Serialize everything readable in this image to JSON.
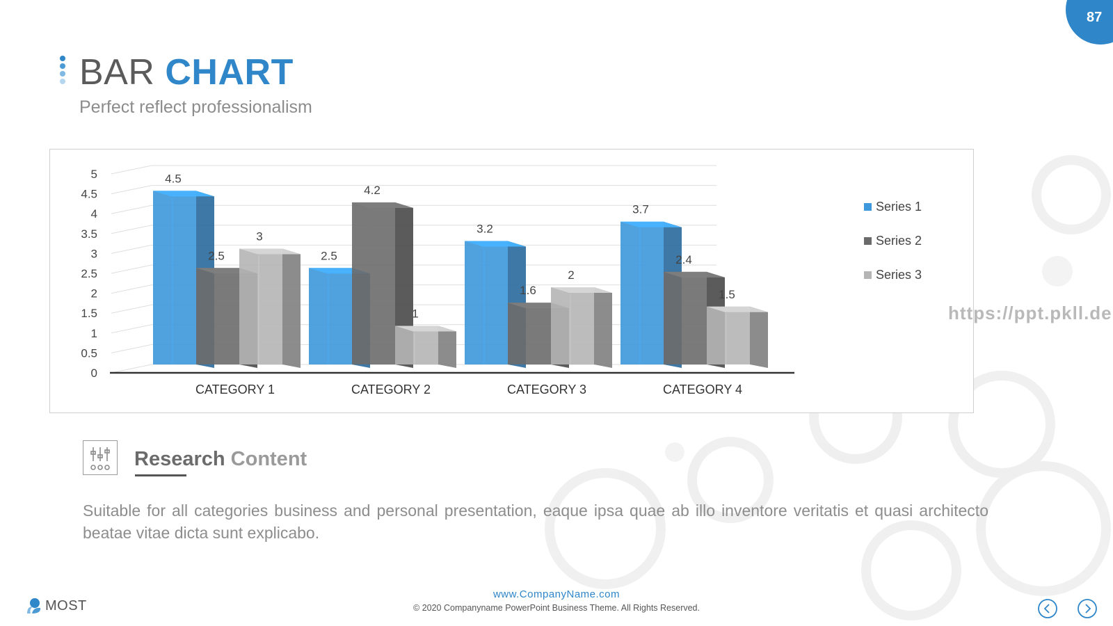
{
  "page_number": "87",
  "header": {
    "title_part1": "BAR",
    "title_part2": "CHART",
    "subtitle": "Perfect reflect professionalism"
  },
  "colors": {
    "accent": "#2f86c9",
    "series1": "#3d98dc",
    "series2": "#6b6b6b",
    "series3": "#b5b5b5"
  },
  "chart_data": {
    "type": "bar",
    "categories": [
      "CATEGORY 1",
      "CATEGORY 2",
      "CATEGORY 3",
      "CATEGORY 4"
    ],
    "series": [
      {
        "name": "Series 1",
        "values": [
          4.5,
          2.5,
          3.2,
          3.7
        ]
      },
      {
        "name": "Series 2",
        "values": [
          2.5,
          4.2,
          1.6,
          2.4
        ]
      },
      {
        "name": "Series 3",
        "values": [
          3,
          1,
          2,
          1.5
        ]
      }
    ],
    "y_ticks": [
      "0",
      "0.5",
      "1",
      "1.5",
      "2",
      "2.5",
      "3",
      "3.5",
      "4",
      "4.5",
      "5"
    ],
    "ylim": [
      0,
      5
    ],
    "grid": true,
    "legend_position": "right",
    "style": "3d-clustered-column"
  },
  "research": {
    "title_part1": "Research",
    "title_part2": "Content",
    "icon": "sliders-icon",
    "text": "Suitable for all categories business and personal presentation, eaque ipsa quae ab illo inventore veritatis et quasi architecto beatae vitae dicta sunt explicabo."
  },
  "footer": {
    "logo_text": "MOST",
    "url": "www.CompanyName.com",
    "copyright": "© 2020 Companyname PowerPoint Business Theme. All Rights Reserved.",
    "watermark": "https://ppt.pkll.de"
  }
}
